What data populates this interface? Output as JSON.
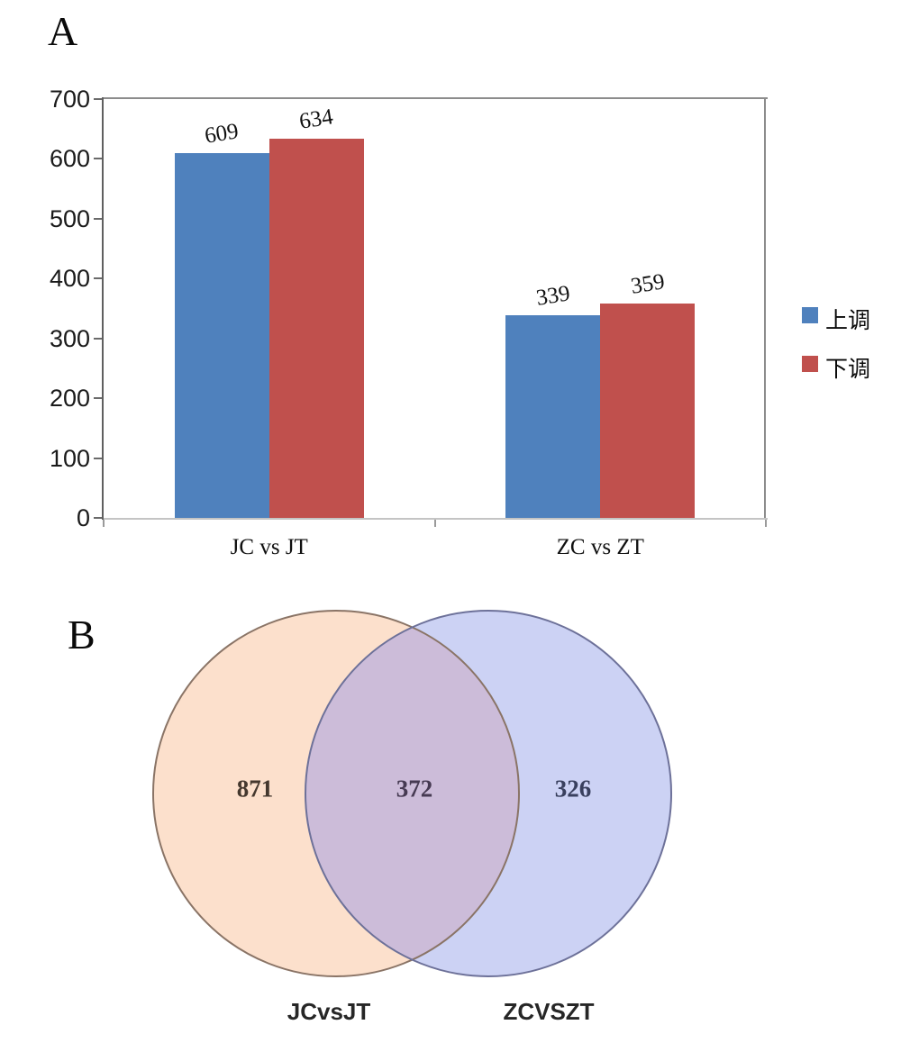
{
  "panel_a": {
    "label": "A"
  },
  "panel_b": {
    "label": "B"
  },
  "chart_data": [
    {
      "type": "bar",
      "title": "",
      "xlabel": "",
      "ylabel": "",
      "categories": [
        "JC vs JT",
        "ZC vs ZT"
      ],
      "series": [
        {
          "name": "上调",
          "color": "#4F81BD",
          "values": [
            609,
            339
          ]
        },
        {
          "name": "下调",
          "color": "#C0504D",
          "values": [
            634,
            359
          ]
        }
      ],
      "value_labels": [
        [
          609,
          339
        ],
        [
          634,
          359
        ]
      ],
      "ylim": [
        0,
        700
      ],
      "ytick_step": 100,
      "yticks": [
        0,
        100,
        200,
        300,
        400,
        500,
        600,
        700
      ],
      "grid": false,
      "legend_position": "right"
    },
    {
      "type": "venn",
      "sets": [
        {
          "label": "JCvsJT",
          "unique_count": 871,
          "color": "#FCE0CC",
          "outline": "#8a7466",
          "count_color": "#44382e"
        },
        {
          "label": "ZCVSZT",
          "unique_count": 326,
          "color": "#CCD2F4",
          "outline": "#6d7199",
          "count_color": "#39405e"
        }
      ],
      "overlap_count": 372,
      "overlap_color": "#CCBCD9",
      "overlap_count_color": "#463a52"
    }
  ]
}
